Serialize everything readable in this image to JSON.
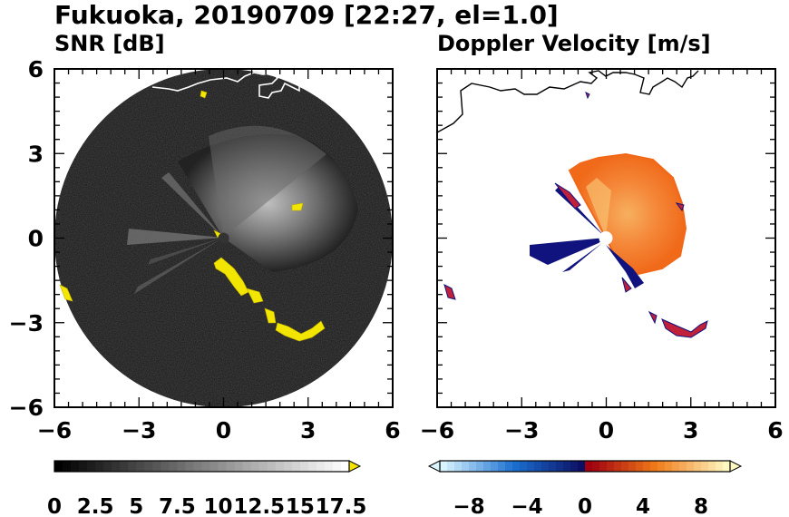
{
  "title": "Fukuoka, 20190709 [22:27, el=1.0]",
  "chart_data": [
    {
      "type": "heatmap",
      "title": "SNR [dB]",
      "xlim": [
        -6,
        6
      ],
      "ylim": [
        -6,
        6
      ],
      "x_ticks": [
        "−6",
        "−3",
        "0",
        "3",
        "6"
      ],
      "y_ticks": [
        "6",
        "3",
        "0",
        "−3",
        "−6"
      ],
      "colorbar": {
        "ticks": [
          "0",
          "2.5",
          "5",
          "7.5",
          "10",
          "12.5",
          "15",
          "17.5"
        ],
        "range": [
          0,
          18
        ],
        "extend": "max",
        "colors": {
          "low": "#000000",
          "high": "#ffffff",
          "over": "#f5e400"
        }
      },
      "echo": {
        "clutter_color": "#f2e600",
        "coast_color": "#ffffff",
        "radius": 6
      }
    },
    {
      "type": "heatmap",
      "title": "Doppler Velocity [m/s]",
      "xlim": [
        -6,
        6
      ],
      "ylim": [
        -6,
        6
      ],
      "x_ticks": [
        "−6",
        "−3",
        "0",
        "3",
        "6"
      ],
      "colorbar": {
        "ticks": [
          "−8",
          "−4",
          "0",
          "4",
          "8"
        ],
        "range": [
          -10,
          10
        ],
        "extend": "both",
        "colors": {
          "neg_min": "#d8f4ff",
          "neg_mid": "#1a6fd0",
          "neg_max": "#0b0b5e",
          "zero": "#a00010",
          "pos_mid": "#f07a18",
          "pos_max": "#fff8c0"
        }
      },
      "echo": {
        "coast_color": "#000000",
        "rain_color": "#f57a22",
        "clutter_color": "#c0203a",
        "approach_color": "#10127e"
      }
    }
  ]
}
